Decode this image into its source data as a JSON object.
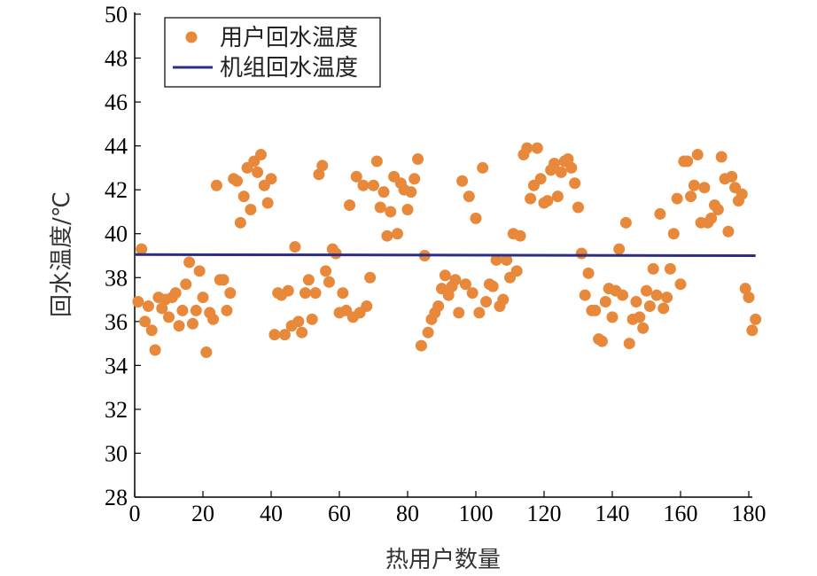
{
  "chart_data": {
    "type": "scatter",
    "xlabel": "热用户数量",
    "ylabel": "回水温度/℃",
    "xlim": [
      0,
      180
    ],
    "ylim": [
      28,
      50
    ],
    "xticks": [
      0,
      20,
      40,
      60,
      80,
      100,
      120,
      140,
      160,
      180
    ],
    "yticks": [
      28,
      30,
      32,
      34,
      36,
      38,
      40,
      42,
      44,
      46,
      48,
      50
    ],
    "grid": false,
    "legend_position": "top-left",
    "series": [
      {
        "name": "用户回水温度",
        "kind": "scatter",
        "color": "#E8883A",
        "x": [
          1,
          2,
          3,
          4,
          5,
          6,
          7,
          8,
          9,
          10,
          11,
          12,
          13,
          14,
          15,
          16,
          17,
          18,
          19,
          20,
          21,
          22,
          23,
          24,
          25,
          26,
          27,
          28,
          29,
          30,
          31,
          32,
          33,
          34,
          35,
          36,
          37,
          38,
          39,
          40,
          41,
          42,
          43,
          44,
          45,
          46,
          47,
          48,
          49,
          50,
          51,
          52,
          53,
          54,
          55,
          56,
          57,
          58,
          59,
          60,
          61,
          62,
          63,
          64,
          65,
          66,
          67,
          68,
          69,
          70,
          71,
          72,
          73,
          74,
          75,
          76,
          77,
          78,
          79,
          80,
          81,
          82,
          83,
          84,
          85,
          86,
          87,
          88,
          89,
          90,
          91,
          92,
          93,
          94,
          95,
          96,
          97,
          98,
          99,
          100,
          101,
          102,
          103,
          104,
          105,
          106,
          107,
          108,
          109,
          110,
          111,
          112,
          113,
          114,
          115,
          116,
          117,
          118,
          119,
          120,
          121,
          122,
          123,
          124,
          125,
          126,
          127,
          128,
          129,
          130,
          131,
          132,
          133,
          134,
          135,
          136,
          137,
          138,
          139,
          140,
          141,
          142,
          143,
          144,
          145,
          146,
          147,
          148,
          149,
          150,
          151,
          152,
          153,
          154,
          155,
          156,
          157,
          158,
          159,
          160,
          161,
          162,
          163,
          164,
          165,
          166,
          167,
          168,
          169,
          170,
          171,
          172,
          173,
          174,
          175,
          176,
          177,
          178,
          179,
          180,
          181,
          182
        ],
        "y": [
          36.9,
          39.3,
          36.0,
          36.7,
          35.6,
          34.7,
          37.1,
          36.6,
          37.0,
          36.2,
          37.1,
          37.3,
          35.8,
          36.5,
          37.7,
          38.7,
          35.9,
          36.5,
          38.3,
          37.1,
          34.6,
          36.4,
          36.1,
          42.2,
          37.9,
          37.9,
          36.5,
          37.3,
          42.5,
          42.4,
          40.5,
          41.7,
          43.0,
          41.1,
          43.3,
          42.8,
          43.6,
          42.2,
          41.4,
          42.5,
          35.4,
          37.3,
          37.2,
          35.4,
          37.4,
          35.8,
          39.4,
          36.0,
          35.5,
          37.3,
          37.9,
          36.1,
          37.3,
          42.7,
          43.1,
          38.3,
          37.8,
          39.3,
          39.1,
          36.4,
          37.3,
          36.5,
          41.3,
          36.2,
          42.6,
          36.4,
          42.2,
          36.7,
          38.0,
          42.2,
          43.3,
          41.2,
          41.9,
          39.9,
          41.0,
          42.6,
          40.0,
          42.3,
          42.0,
          41.1,
          41.9,
          42.5,
          43.4,
          34.9,
          39.0,
          35.5,
          36.1,
          36.4,
          36.7,
          37.5,
          38.1,
          37.2,
          37.6,
          37.9,
          36.4,
          42.4,
          37.7,
          41.7,
          37.3,
          40.7,
          36.4,
          43.0,
          36.9,
          37.7,
          37.6,
          38.8,
          36.7,
          37.0,
          38.8,
          38.0,
          40.0,
          38.3,
          39.9,
          43.6,
          43.9,
          41.6,
          42.2,
          43.9,
          42.5,
          41.4,
          41.5,
          42.9,
          43.2,
          41.7,
          42.8,
          43.3,
          43.4,
          43.0,
          42.3,
          41.2,
          39.1,
          37.2,
          38.2,
          36.5,
          36.5,
          35.2,
          35.1,
          36.9,
          37.5,
          36.2,
          37.4,
          39.3,
          37.2,
          40.5,
          35.0,
          36.1,
          36.9,
          36.2,
          35.7,
          37.4,
          36.7,
          38.4,
          37.2,
          40.9,
          36.6,
          37.1,
          38.4,
          40.0,
          41.6,
          37.7,
          43.3,
          43.3,
          41.7,
          42.2,
          43.6,
          40.5,
          42.1,
          40.5,
          40.7,
          41.3,
          41.1,
          43.5,
          42.5,
          40.1,
          42.6,
          42.1,
          41.5,
          41.8,
          37.5,
          37.1,
          35.6,
          36.1
        ]
      },
      {
        "name": "机组回水温度",
        "kind": "line",
        "color": "#2B2E83",
        "x": [
          0,
          182
        ],
        "y": [
          39.05,
          39.0
        ]
      }
    ]
  }
}
